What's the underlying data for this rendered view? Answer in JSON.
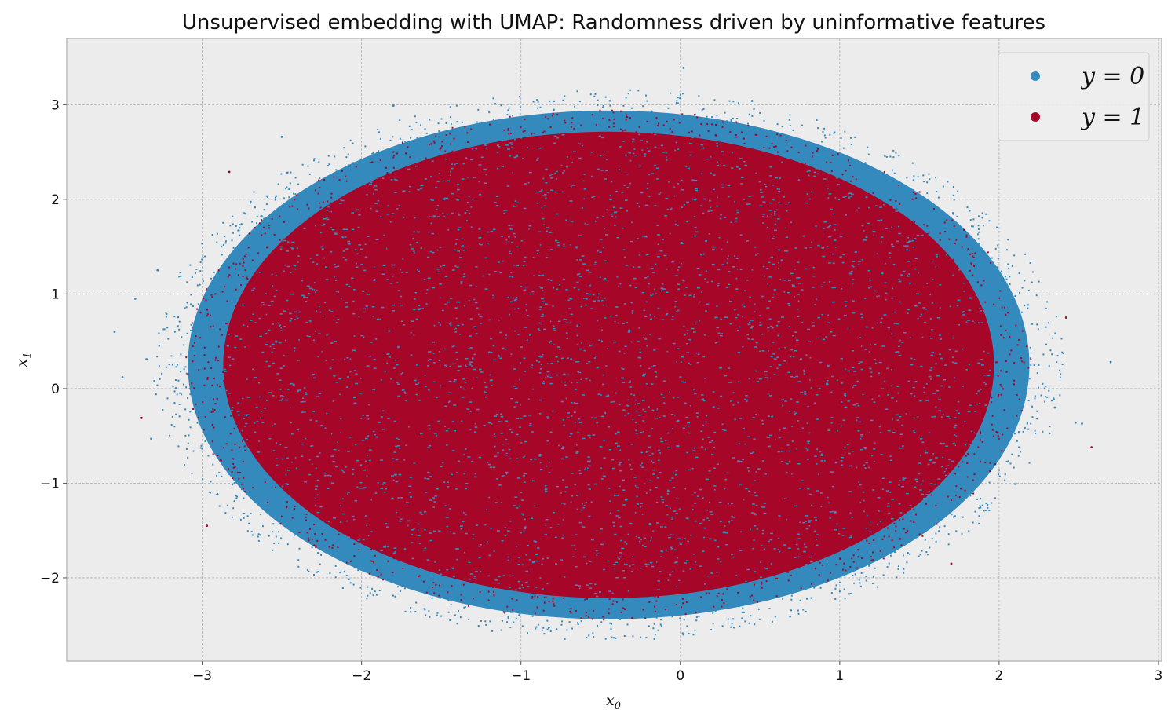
{
  "chart_data": {
    "type": "scatter",
    "title": "Unsupervised embedding with UMAP: Randomness driven by uninformative features",
    "xlabel": "x",
    "xlabel_sub": "0",
    "ylabel": "x",
    "ylabel_sub": "1",
    "xlim": [
      -3.85,
      3.02
    ],
    "ylim": [
      -2.88,
      3.7
    ],
    "xticks": [
      -3,
      -2,
      -1,
      0,
      1,
      2,
      3
    ],
    "yticks": [
      -2,
      -1,
      0,
      1,
      2,
      3
    ],
    "xtick_labels": [
      "−3",
      "−2",
      "−1",
      "0",
      "1",
      "2",
      "3"
    ],
    "ytick_labels": [
      "−2",
      "−1",
      "0",
      "1",
      "2",
      "3"
    ],
    "grid": true,
    "legend_position": "top-right",
    "background": "#ececec",
    "series": [
      {
        "name": "y = 0",
        "color": "#348abd",
        "distribution": {
          "shape": "filled ellipse",
          "center": [
            -0.45,
            0.25
          ],
          "radius_x": 2.75,
          "radius_y": 2.8
        }
      },
      {
        "name": "y = 1",
        "color": "#a60628",
        "distribution": {
          "shape": "filled ellipse",
          "center": [
            -0.45,
            0.25
          ],
          "radius_x": 2.6,
          "radius_y": 2.65
        }
      }
    ],
    "outliers": {
      "y = 0": [
        [
          -3.55,
          0.6
        ],
        [
          -3.5,
          0.12
        ],
        [
          -3.42,
          0.95
        ],
        [
          -3.35,
          0.31
        ],
        [
          -3.32,
          -0.53
        ],
        [
          -3.3,
          0.08
        ],
        [
          -3.28,
          1.25
        ],
        [
          -2.5,
          2.66
        ],
        [
          -1.8,
          2.99
        ],
        [
          0.02,
          3.39
        ],
        [
          0.45,
          3.04
        ],
        [
          2.7,
          0.28
        ],
        [
          2.52,
          -0.37
        ],
        [
          2.48,
          -0.36
        ],
        [
          2.35,
          -0.2
        ]
      ],
      "y = 1": [
        [
          -3.38,
          -0.31
        ],
        [
          -2.83,
          2.29
        ],
        [
          -2.97,
          -1.45
        ],
        [
          2.58,
          -0.62
        ],
        [
          1.7,
          -1.85
        ],
        [
          2.42,
          0.75
        ]
      ]
    }
  }
}
